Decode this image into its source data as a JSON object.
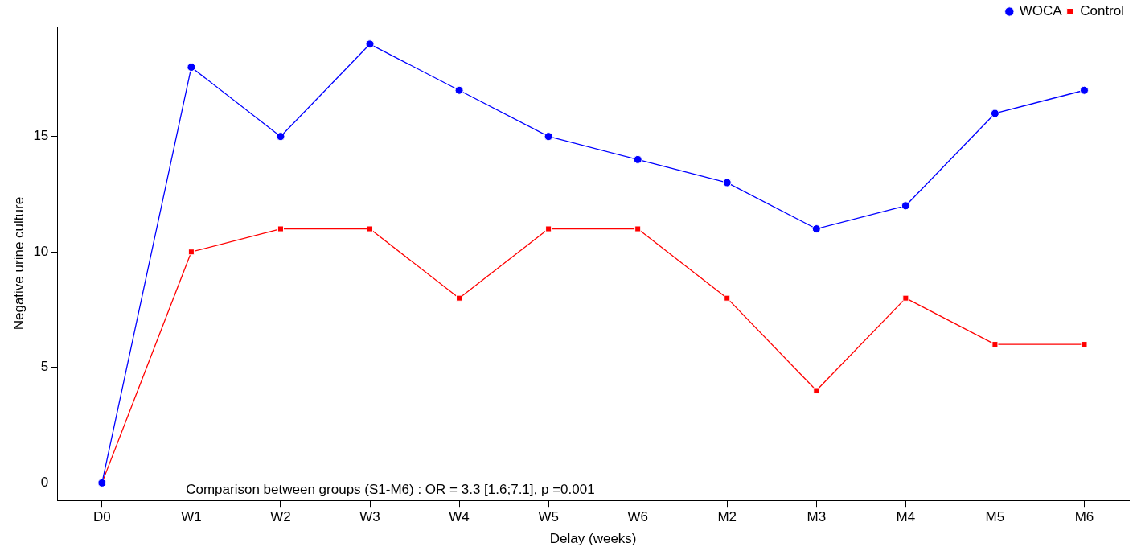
{
  "chart_data": {
    "type": "line",
    "xlabel": "Delay (weeks)",
    "ylabel": "Negative urine culture",
    "categories": [
      "D0",
      "W1",
      "W2",
      "W3",
      "W4",
      "W5",
      "W6",
      "M2",
      "M3",
      "M4",
      "M5",
      "M6"
    ],
    "series": [
      {
        "name": "WOCA",
        "color": "#0000ff",
        "marker": "circle",
        "values": [
          0,
          18,
          15,
          19,
          17,
          15,
          14,
          13,
          11,
          12,
          16,
          17
        ]
      },
      {
        "name": "Control",
        "color": "#ff0000",
        "marker": "square",
        "values": [
          0,
          10,
          11,
          11,
          8,
          11,
          11,
          8,
          4,
          8,
          6,
          6
        ]
      }
    ],
    "ylim": [
      -0.76,
      19.76
    ],
    "yticks": [
      0,
      5,
      10,
      15
    ],
    "grid": false,
    "legend": "top right",
    "line_style": "solid",
    "annotations": [
      "Comparison between groups (S1-M6) : OR = 3.3 [1.6;7.1], p =0.001"
    ]
  }
}
